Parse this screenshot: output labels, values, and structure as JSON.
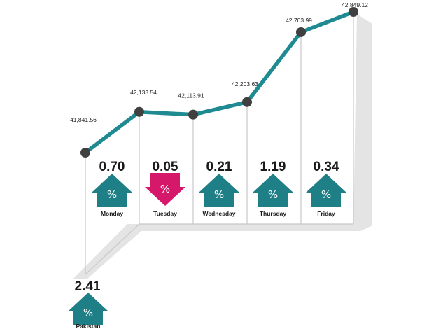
{
  "chart_data": {
    "type": "line",
    "categories": [
      "Monday",
      "Tuesday",
      "Wednesday",
      "Thursday",
      "Friday"
    ],
    "points": [
      {
        "label": "41,841.56",
        "value": 41841.56
      },
      {
        "label": "42,133.54",
        "value": 42133.54
      },
      {
        "label": "42,113.91",
        "value": 42113.91
      },
      {
        "label": "42,203.63",
        "value": 42203.63
      },
      {
        "label": "42,703.99",
        "value": 42703.99
      },
      {
        "label": "42,849.12",
        "value": 42849.12
      }
    ],
    "daily_change": [
      {
        "day": "Monday",
        "value": "0.70",
        "direction": "up"
      },
      {
        "day": "Tuesday",
        "value": "0.05",
        "direction": "down"
      },
      {
        "day": "Wednesday",
        "value": "0.21",
        "direction": "up"
      },
      {
        "day": "Thursday",
        "value": "1.19",
        "direction": "up"
      },
      {
        "day": "Friday",
        "value": "0.34",
        "direction": "up"
      }
    ],
    "weekly_change": {
      "label": "Pakistan",
      "value": "2.41",
      "direction": "up"
    },
    "percent_symbol": "%",
    "grid": false,
    "colors": {
      "line": "#1f8a91",
      "up": "#1f7f86",
      "down": "#d6186a",
      "marker": "#404040",
      "guide": "#c8c8c8",
      "shadow": "#e4e4e4"
    }
  }
}
